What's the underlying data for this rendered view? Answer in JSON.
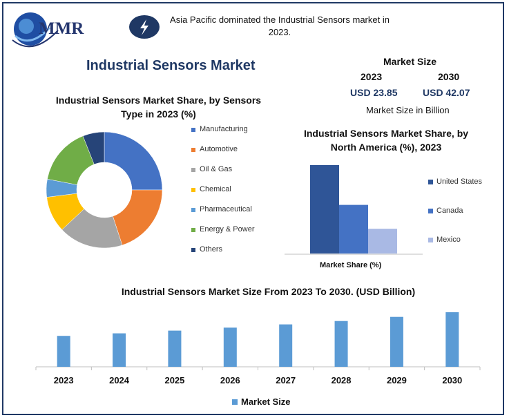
{
  "header": {
    "logo_text": "MMR",
    "alert_text": "Asia Pacific dominated the Industrial Sensors market in 2023.",
    "main_title": "Industrial Sensors Market"
  },
  "market_size": {
    "label": "Market Size",
    "year_start": "2023",
    "year_end": "2030",
    "value_start": "USD 23.85",
    "value_end": "USD 42.07",
    "note": "Market Size in Billion"
  },
  "colors": {
    "frame": "#1f3864",
    "title": "#1f3864",
    "bar": "#5b9bd5"
  },
  "chart_data": [
    {
      "type": "pie",
      "title": "Industrial Sensors Market Share, by Sensors Type in 2023 (%)",
      "categories": [
        "Manufacturing",
        "Automotive",
        "Oil & Gas",
        "Chemical",
        "Pharmaceutical",
        "Energy & Power",
        "Others"
      ],
      "values": [
        25,
        20,
        18,
        10,
        5,
        16,
        6
      ],
      "colors": [
        "#4472c4",
        "#ed7d31",
        "#a5a5a5",
        "#ffc000",
        "#5b9bd5",
        "#70ad47",
        "#264478"
      ],
      "legend_position": "right",
      "hole": true
    },
    {
      "type": "bar",
      "title": "Industrial Sensors Market Share,  by North America (%), 2023",
      "xlabel": "Market Share (%)",
      "series": [
        {
          "name": "United States",
          "values": [
            100
          ],
          "color": "#2f5597"
        },
        {
          "name": "Canada",
          "values": [
            55
          ],
          "color": "#4472c4"
        },
        {
          "name": "Mexico",
          "values": [
            28
          ],
          "color": "#a9b9e4"
        }
      ],
      "ylim": [
        0,
        100
      ],
      "legend_position": "right"
    },
    {
      "type": "bar",
      "title": "Industrial Sensors Market Size From 2023 To 2030. (USD Billion)",
      "categories": [
        "2023",
        "2024",
        "2025",
        "2026",
        "2027",
        "2028",
        "2029",
        "2030"
      ],
      "series": [
        {
          "name": "Market  Size",
          "values": [
            23.85,
            25.8,
            27.9,
            30.2,
            32.7,
            35.3,
            38.5,
            42.07
          ]
        }
      ],
      "ylim": [
        0,
        42.07
      ],
      "legend_position": "bottom"
    }
  ]
}
